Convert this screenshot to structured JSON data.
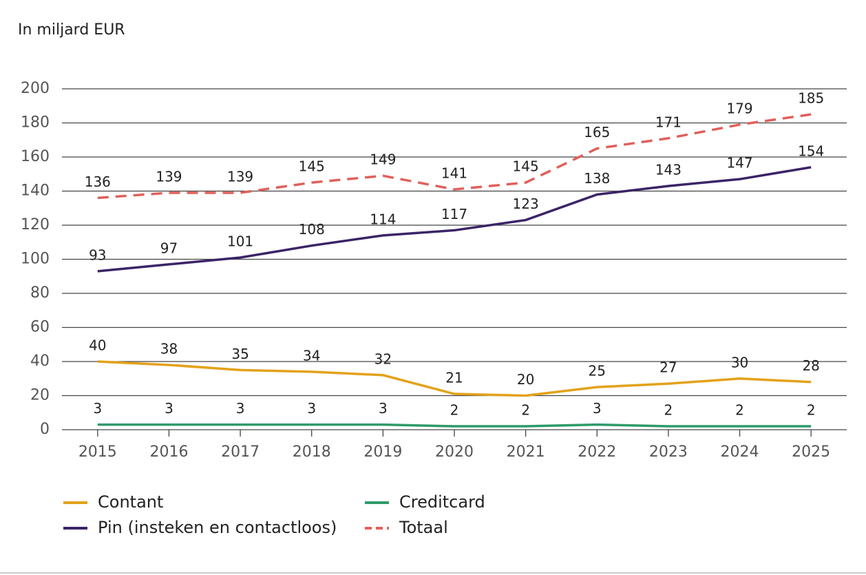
{
  "chart_data": {
    "type": "line",
    "y_label": "In miljard EUR",
    "categories": [
      "2015",
      "2016",
      "2017",
      "2018",
      "2019",
      "2020",
      "2021",
      "2022",
      "2023",
      "2024",
      "2025"
    ],
    "series": [
      {
        "name": "Contant",
        "color": "#e3a21a",
        "values": [
          40,
          38,
          35,
          34,
          32,
          21,
          20,
          25,
          27,
          30,
          28
        ]
      },
      {
        "name": "Pin (insteken en contactloos)",
        "color": "#3b2468",
        "values": [
          93,
          97,
          101,
          108,
          114,
          117,
          123,
          138,
          143,
          147,
          154
        ]
      },
      {
        "name": "Creditcard",
        "color": "#2e9a6a",
        "values": [
          3,
          3,
          3,
          3,
          3,
          2,
          2,
          3,
          2,
          2,
          2
        ]
      },
      {
        "name": "Totaal",
        "color": "#e0605a",
        "line_style": "dashed",
        "values": [
          136,
          139,
          139,
          145,
          149,
          141,
          145,
          165,
          171,
          179,
          185
        ]
      }
    ],
    "ylim": [
      0,
      200
    ],
    "yticks": [
      0,
      20,
      40,
      60,
      80,
      100,
      120,
      140,
      160,
      180,
      200
    ],
    "grid": true
  }
}
